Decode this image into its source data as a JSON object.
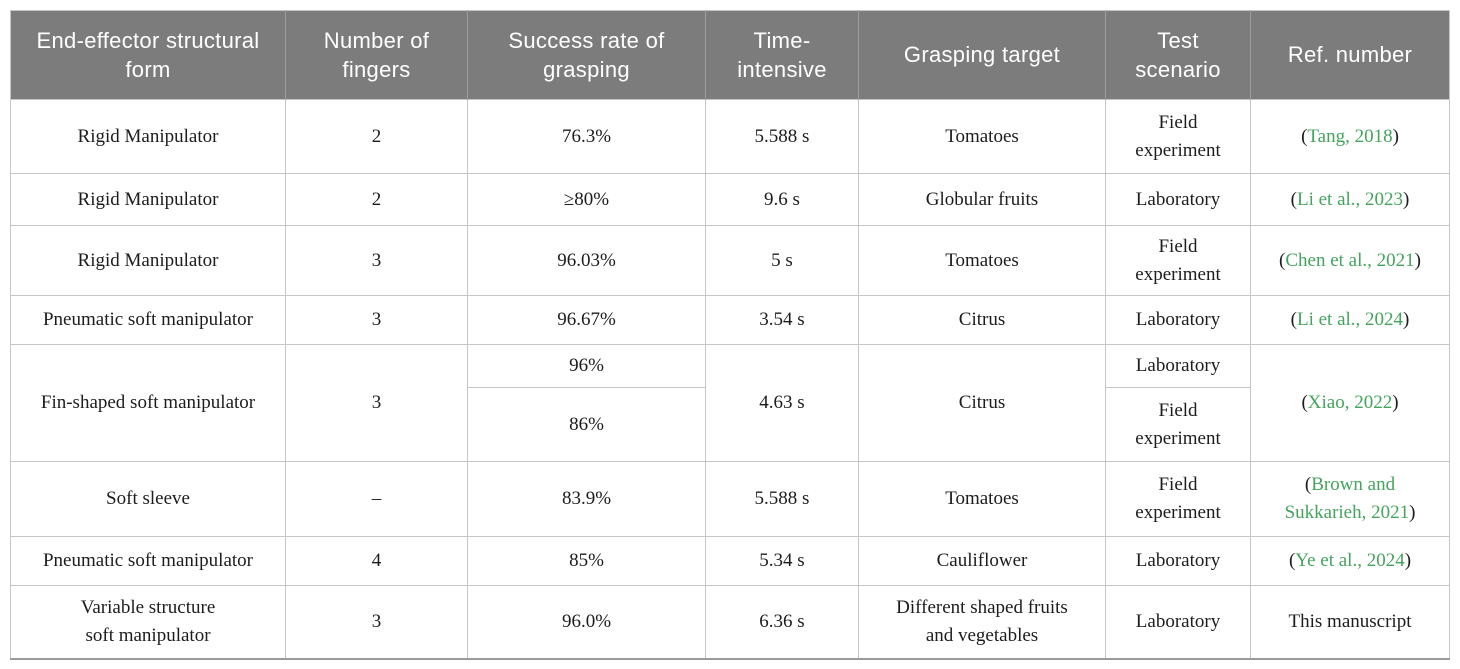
{
  "page": {
    "background": "#ffffff"
  },
  "table": {
    "header_bg": "#7c7c7c",
    "header_text_color": "#ffffff",
    "link_color": "#44a45c",
    "body_text_color": "#1c1c1c",
    "columns": [
      {
        "label": "End-effector structural form"
      },
      {
        "label": "Number of fingers"
      },
      {
        "label": "Success rate of grasping"
      },
      {
        "label": "Time-intensive"
      },
      {
        "label": "Grasping target"
      },
      {
        "label": "Test scenario"
      },
      {
        "label": "Ref. number"
      }
    ],
    "rows": [
      {
        "form": "Rigid Manipulator",
        "fingers": "2",
        "success": "76.3%",
        "time": "5.588 s",
        "target": "Tomatoes",
        "scenario": "Field experiment",
        "ref": {
          "prefix": "(",
          "label": "Tang, 2018",
          "suffix": ")"
        }
      },
      {
        "form": "Rigid Manipulator",
        "fingers": "2",
        "success": "≥80%",
        "time": "9.6 s",
        "target": "Globular fruits",
        "scenario": "Laboratory",
        "ref": {
          "prefix": "(",
          "label": "Li et al., 2023",
          "suffix": ")"
        }
      },
      {
        "form": "Rigid Manipulator",
        "fingers": "3",
        "success": "96.03%",
        "time": "5 s",
        "target": "Tomatoes",
        "scenario": "Field experiment",
        "ref": {
          "prefix": "(",
          "label": "Chen et al., 2021",
          "suffix": ")"
        }
      },
      {
        "form": "Pneumatic soft manipulator",
        "fingers": "3",
        "success": "96.67%",
        "time": "3.54 s",
        "target": "Citrus",
        "scenario": "Laboratory",
        "ref": {
          "prefix": "(",
          "label": "Li et al., 2024",
          "suffix": ")"
        }
      },
      {
        "form": "Fin-shaped soft manipulator",
        "fingers": "3",
        "success_top": "96%",
        "success_bottom": "86%",
        "time": "4.63 s",
        "target": "Citrus",
        "scenario_top": "Laboratory",
        "scenario_bottom": "Field experiment",
        "ref": {
          "prefix": "(",
          "label": "Xiao, 2022",
          "suffix": ")"
        }
      },
      {
        "form": "Soft sleeve",
        "fingers": "–",
        "success": "83.9%",
        "time": "5.588 s",
        "target": "Tomatoes",
        "scenario": "Field experiment",
        "ref": {
          "prefix": "(",
          "label": "Brown and Sukkarieh, 2021",
          "suffix": ")"
        }
      },
      {
        "form": "Pneumatic soft manipulator",
        "fingers": "4",
        "success": "85%",
        "time": "5.34 s",
        "target": "Cauliflower",
        "scenario": "Laboratory",
        "ref": {
          "prefix": "(",
          "label": "Ye et al., 2024",
          "suffix": ")"
        }
      },
      {
        "form_line1": "Variable structure",
        "form_line2": "soft manipulator",
        "fingers": "3",
        "success": "96.0%",
        "time": "6.36 s",
        "target_line1": "Different shaped fruits",
        "target_line2": "and vegetables",
        "scenario": "Laboratory",
        "ref_plain": "This manuscript"
      }
    ]
  }
}
